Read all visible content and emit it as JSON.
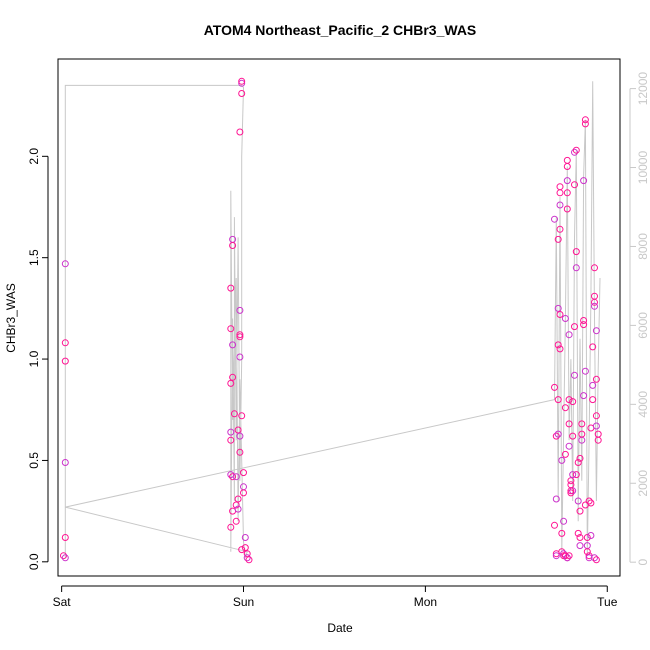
{
  "chart_data": {
    "type": "scatter",
    "title": "ATOM4 Northeast_Pacific_2 CHBr3_WAS",
    "xlabel": "Date",
    "ylabel": "CHBr3_WAS",
    "x_ticks": [
      "Sat",
      "Sun",
      "Mon",
      "Tue"
    ],
    "y_ticks": [
      "0.0",
      "0.5",
      "1.0",
      "1.5",
      "2.0"
    ],
    "y2_ticks": [
      "0",
      "2000",
      "4000",
      "6000",
      "8000",
      "10000",
      "12000"
    ],
    "xlim": [
      -0.02,
      3.07
    ],
    "ylim": [
      -0.07,
      2.48
    ],
    "y2lim": [
      -350,
      12750
    ],
    "grid": false,
    "colors": {
      "points": "#ff1493",
      "points_alt": "#cc33cc",
      "line": "#c8c8c8",
      "right_axis": "#c8c8c8"
    },
    "series": [
      {
        "values": [
          [
            0.02,
            1.47
          ],
          [
            0.02,
            1.08
          ],
          [
            0.02,
            0.99
          ],
          [
            0.02,
            0.49
          ],
          [
            0.02,
            0.12
          ],
          [
            0.01,
            0.03
          ],
          [
            0.02,
            0.02
          ],
          [
            0.93,
            0.17
          ],
          [
            0.94,
            0.25
          ],
          [
            0.93,
            0.43
          ],
          [
            0.94,
            0.42
          ],
          [
            0.93,
            0.6
          ],
          [
            0.93,
            0.64
          ],
          [
            0.93,
            0.88
          ],
          [
            0.94,
            0.91
          ],
          [
            0.94,
            1.07
          ],
          [
            0.93,
            1.15
          ],
          [
            0.93,
            1.35
          ],
          [
            0.94,
            1.59
          ],
          [
            0.94,
            1.56
          ],
          [
            0.95,
            0.73
          ],
          [
            0.96,
            0.42
          ],
          [
            0.96,
            0.28
          ],
          [
            0.96,
            0.2
          ],
          [
            0.97,
            0.26
          ],
          [
            0.97,
            0.31
          ],
          [
            0.97,
            0.65
          ],
          [
            0.98,
            1.01
          ],
          [
            0.98,
            1.11
          ],
          [
            0.98,
            1.12
          ],
          [
            0.98,
            1.24
          ],
          [
            0.98,
            2.12
          ],
          [
            0.99,
            2.31
          ],
          [
            0.99,
            2.36
          ],
          [
            0.99,
            2.37
          ],
          [
            0.98,
            0.54
          ],
          [
            0.98,
            0.62
          ],
          [
            0.99,
            0.72
          ],
          [
            1.0,
            0.44
          ],
          [
            1.0,
            0.37
          ],
          [
            1.0,
            0.34
          ],
          [
            0.99,
            0.06
          ],
          [
            1.01,
            0.12
          ],
          [
            1.01,
            0.07
          ],
          [
            1.02,
            0.04
          ],
          [
            1.02,
            0.02
          ],
          [
            1.03,
            0.01
          ],
          [
            2.71,
            0.86
          ],
          [
            2.71,
            1.69
          ],
          [
            2.71,
            0.18
          ],
          [
            2.72,
            0.62
          ],
          [
            2.72,
            0.31
          ],
          [
            2.73,
            1.07
          ],
          [
            2.73,
            0.8
          ],
          [
            2.73,
            1.25
          ],
          [
            2.73,
            1.59
          ],
          [
            2.74,
            1.64
          ],
          [
            2.74,
            1.76
          ],
          [
            2.74,
            1.82
          ],
          [
            2.74,
            1.85
          ],
          [
            2.73,
            0.63
          ],
          [
            2.74,
            1.22
          ],
          [
            2.74,
            1.05
          ],
          [
            2.75,
            0.5
          ],
          [
            2.75,
            0.14
          ],
          [
            2.75,
            0.05
          ],
          [
            2.76,
            0.2
          ],
          [
            2.77,
            0.53
          ],
          [
            2.77,
            0.76
          ],
          [
            2.77,
            1.2
          ],
          [
            2.78,
            1.74
          ],
          [
            2.78,
            1.82
          ],
          [
            2.78,
            1.88
          ],
          [
            2.78,
            1.95
          ],
          [
            2.78,
            1.98
          ],
          [
            2.79,
            1.12
          ],
          [
            2.79,
            0.8
          ],
          [
            2.79,
            0.68
          ],
          [
            2.79,
            0.57
          ],
          [
            2.8,
            0.4
          ],
          [
            2.8,
            0.34
          ],
          [
            2.81,
            0.35
          ],
          [
            2.81,
            0.62
          ],
          [
            2.81,
            0.79
          ],
          [
            2.82,
            0.92
          ],
          [
            2.82,
            1.16
          ],
          [
            2.82,
            1.86
          ],
          [
            2.82,
            2.02
          ],
          [
            2.83,
            2.03
          ],
          [
            2.83,
            1.53
          ],
          [
            2.83,
            1.45
          ],
          [
            2.83,
            0.43
          ],
          [
            2.84,
            0.49
          ],
          [
            2.84,
            0.3
          ],
          [
            2.84,
            0.14
          ],
          [
            2.85,
            0.12
          ],
          [
            2.85,
            0.08
          ],
          [
            2.85,
            0.25
          ],
          [
            2.85,
            0.51
          ],
          [
            2.86,
            0.6
          ],
          [
            2.86,
            0.63
          ],
          [
            2.86,
            0.68
          ],
          [
            2.87,
            0.82
          ],
          [
            2.87,
            1.17
          ],
          [
            2.87,
            1.19
          ],
          [
            2.87,
            1.88
          ],
          [
            2.88,
            2.16
          ],
          [
            2.88,
            2.18
          ],
          [
            2.88,
            0.94
          ],
          [
            2.88,
            0.28
          ],
          [
            2.89,
            0.12
          ],
          [
            2.89,
            0.08
          ],
          [
            2.89,
            0.05
          ],
          [
            2.9,
            0.03
          ],
          [
            2.9,
            0.02
          ],
          [
            2.91,
            0.66
          ],
          [
            2.92,
            0.8
          ],
          [
            2.92,
            0.87
          ],
          [
            2.92,
            1.06
          ],
          [
            2.93,
            1.28
          ],
          [
            2.93,
            1.26
          ],
          [
            2.93,
            1.31
          ],
          [
            2.93,
            1.45
          ],
          [
            2.94,
            1.14
          ],
          [
            2.94,
            0.9
          ],
          [
            2.94,
            0.72
          ],
          [
            2.94,
            0.67
          ],
          [
            2.95,
            0.63
          ],
          [
            2.95,
            0.6
          ],
          [
            2.93,
            0.02
          ],
          [
            2.94,
            0.01
          ],
          [
            2.76,
            0.03
          ],
          [
            2.76,
            0.04
          ],
          [
            2.77,
            0.03
          ],
          [
            2.78,
            0.02
          ],
          [
            2.78,
            0.02
          ],
          [
            2.79,
            0.03
          ],
          [
            2.72,
            0.04
          ],
          [
            2.72,
            0.03
          ],
          [
            2.8,
            0.35
          ],
          [
            2.8,
            0.38
          ],
          [
            2.81,
            0.43
          ],
          [
            2.9,
            0.3
          ],
          [
            2.91,
            0.29
          ],
          [
            2.91,
            0.13
          ]
        ]
      }
    ]
  }
}
